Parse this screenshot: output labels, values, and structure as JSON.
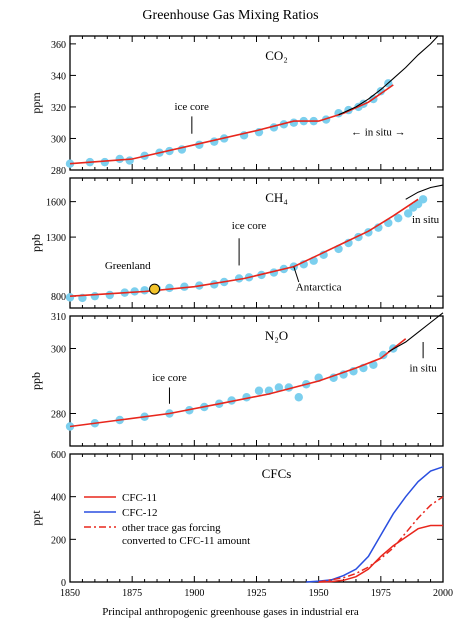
{
  "figure": {
    "title": "Greenhouse Gas Mixing Ratios",
    "caption": "Principal anthropogenic greenhouse gases in industrial era"
  },
  "colors": {
    "fit": "#e8261c",
    "data": "#7ccfee",
    "instrument": "#000000",
    "cfc12": "#2a4fe0",
    "greenland": "#f2c32a"
  },
  "chart_data": [
    {
      "type": "scatter",
      "panel_label": "CO₂",
      "ylabel": "ppm",
      "xlim": [
        1850,
        2000
      ],
      "ylim": [
        280,
        365
      ],
      "yticks": [
        280,
        300,
        320,
        340,
        360
      ],
      "ice_core_label": "ice core",
      "in_situ_label": "← in situ →",
      "points": [
        [
          1850,
          284
        ],
        [
          1858,
          285
        ],
        [
          1864,
          285
        ],
        [
          1870,
          287
        ],
        [
          1874,
          286
        ],
        [
          1880,
          289
        ],
        [
          1886,
          291
        ],
        [
          1890,
          292
        ],
        [
          1895,
          293
        ],
        [
          1902,
          296
        ],
        [
          1908,
          298
        ],
        [
          1912,
          300
        ],
        [
          1920,
          302
        ],
        [
          1926,
          304
        ],
        [
          1932,
          307
        ],
        [
          1936,
          309
        ],
        [
          1940,
          310
        ],
        [
          1944,
          311
        ],
        [
          1948,
          311
        ],
        [
          1953,
          312
        ],
        [
          1958,
          316
        ],
        [
          1962,
          318
        ],
        [
          1966,
          320
        ],
        [
          1968,
          322
        ],
        [
          1972,
          325
        ],
        [
          1975,
          330
        ],
        [
          1978,
          335
        ]
      ],
      "fit": [
        [
          1850,
          284
        ],
        [
          1875,
          287
        ],
        [
          1900,
          296
        ],
        [
          1925,
          305
        ],
        [
          1940,
          311
        ],
        [
          1950,
          311
        ],
        [
          1960,
          316
        ],
        [
          1970,
          323
        ],
        [
          1980,
          334
        ]
      ],
      "in_situ": [
        [
          1958,
          315
        ],
        [
          1965,
          320
        ],
        [
          1970,
          325
        ],
        [
          1975,
          331
        ],
        [
          1980,
          338
        ],
        [
          1985,
          345
        ],
        [
          1990,
          353
        ],
        [
          1995,
          360
        ],
        [
          1998,
          365
        ]
      ]
    },
    {
      "type": "scatter",
      "panel_label": "CH₄",
      "ylabel": "ppb",
      "xlim": [
        1850,
        2000
      ],
      "ylim": [
        700,
        1800
      ],
      "yticks": [
        800,
        1300,
        1600
      ],
      "ice_core_label": "ice core",
      "greenland_label": "Greenland",
      "antarctica_label": "Antarctica",
      "in_situ_label": "in situ",
      "points": [
        [
          1850,
          790
        ],
        [
          1855,
          785
        ],
        [
          1860,
          800
        ],
        [
          1866,
          810
        ],
        [
          1872,
          830
        ],
        [
          1876,
          840
        ],
        [
          1880,
          850
        ],
        [
          1885,
          860
        ],
        [
          1890,
          870
        ],
        [
          1896,
          880
        ],
        [
          1902,
          890
        ],
        [
          1908,
          900
        ],
        [
          1912,
          920
        ],
        [
          1918,
          950
        ],
        [
          1922,
          960
        ],
        [
          1927,
          980
        ],
        [
          1932,
          1000
        ],
        [
          1936,
          1030
        ],
        [
          1940,
          1050
        ],
        [
          1944,
          1070
        ],
        [
          1948,
          1100
        ],
        [
          1952,
          1150
        ],
        [
          1958,
          1200
        ],
        [
          1962,
          1250
        ],
        [
          1966,
          1300
        ],
        [
          1970,
          1340
        ],
        [
          1974,
          1380
        ],
        [
          1978,
          1420
        ],
        [
          1982,
          1460
        ],
        [
          1986,
          1500
        ],
        [
          1988,
          1550
        ],
        [
          1990,
          1580
        ],
        [
          1992,
          1620
        ]
      ],
      "greenland_point": [
        1884,
        860
      ],
      "fit": [
        [
          1850,
          800
        ],
        [
          1880,
          840
        ],
        [
          1900,
          880
        ],
        [
          1920,
          950
        ],
        [
          1940,
          1050
        ],
        [
          1950,
          1150
        ],
        [
          1960,
          1250
        ],
        [
          1970,
          1350
        ],
        [
          1980,
          1480
        ],
        [
          1990,
          1620
        ]
      ],
      "in_situ": [
        [
          1985,
          1620
        ],
        [
          1990,
          1680
        ],
        [
          1995,
          1720
        ],
        [
          2000,
          1740
        ]
      ]
    },
    {
      "type": "scatter",
      "panel_label": "N₂O",
      "ylabel": "ppb",
      "xlim": [
        1850,
        2000
      ],
      "ylim": [
        270,
        310
      ],
      "yticks": [
        280,
        300,
        310
      ],
      "ice_core_label": "ice core",
      "in_situ_label": "in situ",
      "points": [
        [
          1850,
          276
        ],
        [
          1860,
          277
        ],
        [
          1870,
          278
        ],
        [
          1880,
          279
        ],
        [
          1890,
          280
        ],
        [
          1898,
          281
        ],
        [
          1904,
          282
        ],
        [
          1910,
          283
        ],
        [
          1915,
          284
        ],
        [
          1921,
          285
        ],
        [
          1926,
          287
        ],
        [
          1930,
          287
        ],
        [
          1934,
          288
        ],
        [
          1938,
          288
        ],
        [
          1942,
          285
        ],
        [
          1945,
          289
        ],
        [
          1950,
          291
        ],
        [
          1956,
          291
        ],
        [
          1960,
          292
        ],
        [
          1964,
          293
        ],
        [
          1968,
          294
        ],
        [
          1972,
          295
        ],
        [
          1976,
          298
        ],
        [
          1980,
          300
        ]
      ],
      "fit": [
        [
          1850,
          276
        ],
        [
          1870,
          278
        ],
        [
          1890,
          280
        ],
        [
          1910,
          283
        ],
        [
          1930,
          286
        ],
        [
          1950,
          290
        ],
        [
          1965,
          294
        ],
        [
          1975,
          297
        ],
        [
          1985,
          303
        ]
      ],
      "in_situ": [
        [
          1978,
          299
        ],
        [
          1985,
          302
        ],
        [
          1990,
          305
        ],
        [
          1995,
          308
        ],
        [
          2000,
          311
        ]
      ]
    },
    {
      "type": "line",
      "panel_label": "CFCs",
      "ylabel": "ppt",
      "xlim": [
        1850,
        2000
      ],
      "ylim": [
        0,
        600
      ],
      "yticks": [
        0,
        200,
        400,
        600
      ],
      "xticks": [
        1850,
        1875,
        1900,
        1925,
        1950,
        1975,
        2000
      ],
      "legend": [
        {
          "label": "CFC-11",
          "color": "#e8261c",
          "style": "solid"
        },
        {
          "label": "CFC-12",
          "color": "#2a4fe0",
          "style": "solid"
        },
        {
          "label": "other trace gas forcing converted to CFC-11 amount",
          "color": "#e8261c",
          "style": "dashdot"
        }
      ],
      "series": [
        {
          "name": "CFC-11",
          "values": [
            [
              1950,
              0
            ],
            [
              1955,
              2
            ],
            [
              1960,
              8
            ],
            [
              1965,
              25
            ],
            [
              1970,
              60
            ],
            [
              1975,
              120
            ],
            [
              1980,
              170
            ],
            [
              1985,
              210
            ],
            [
              1990,
              250
            ],
            [
              1995,
              265
            ],
            [
              2000,
              265
            ]
          ]
        },
        {
          "name": "CFC-12",
          "values": [
            [
              1945,
              0
            ],
            [
              1950,
              4
            ],
            [
              1955,
              10
            ],
            [
              1960,
              30
            ],
            [
              1965,
              60
            ],
            [
              1970,
              120
            ],
            [
              1975,
              220
            ],
            [
              1980,
              320
            ],
            [
              1985,
              400
            ],
            [
              1990,
              470
            ],
            [
              1995,
              520
            ],
            [
              2000,
              540
            ]
          ]
        },
        {
          "name": "other trace gas forcing converted to CFC-11 amount",
          "values": [
            [
              1950,
              0
            ],
            [
              1960,
              20
            ],
            [
              1965,
              40
            ],
            [
              1970,
              70
            ],
            [
              1975,
              110
            ],
            [
              1980,
              160
            ],
            [
              1985,
              230
            ],
            [
              1990,
              300
            ],
            [
              1995,
              360
            ],
            [
              2000,
              400
            ]
          ]
        }
      ]
    }
  ]
}
